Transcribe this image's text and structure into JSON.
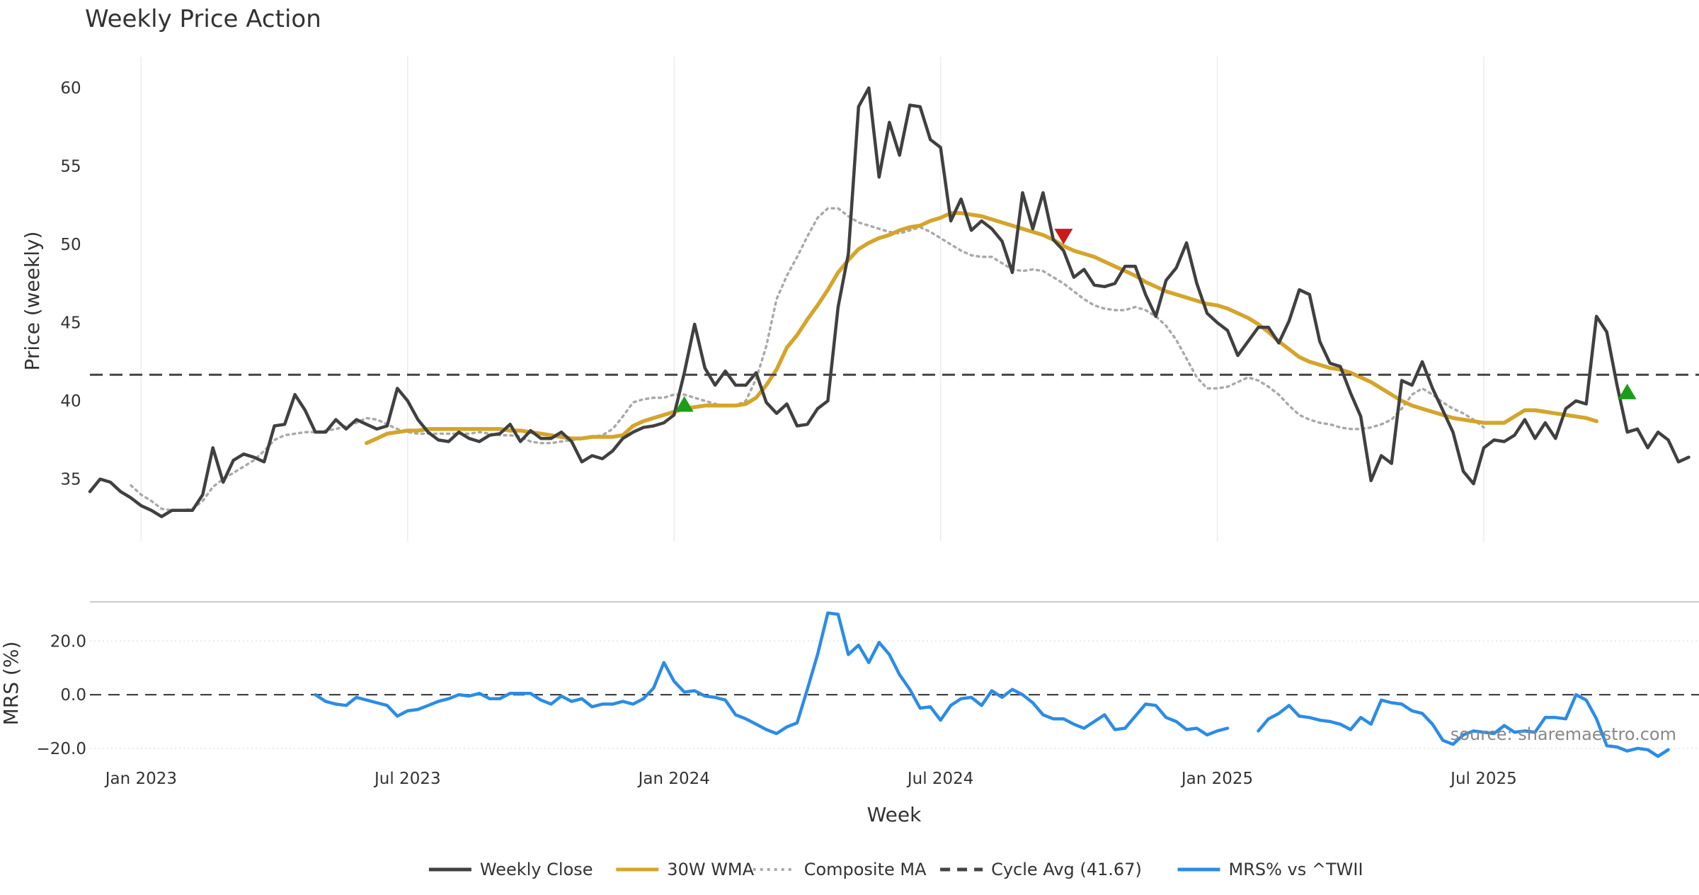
{
  "chart_data": [
    {
      "type": "line",
      "title": "Weekly Price Action",
      "xlabel": "",
      "ylabel": "Price (weekly)",
      "ylim": [
        31,
        62
      ],
      "xlim": [
        "2022-11-28",
        "2025-12-01"
      ],
      "y_ticks": [
        35,
        40,
        45,
        50,
        55,
        60
      ],
      "grid": "vertical",
      "series": [
        {
          "name": "Weekly Close",
          "color": "#404040",
          "style": "solid",
          "start": "2022-11-28",
          "values": [
            34.2,
            35.0,
            34.8,
            34.2,
            33.8,
            33.3,
            33.0,
            32.6,
            33.0,
            33.0,
            33.0,
            34.0,
            37.0,
            34.8,
            36.2,
            36.6,
            36.4,
            36.1,
            38.4,
            38.5,
            40.4,
            39.4,
            38.0,
            38.0,
            38.8,
            38.2,
            38.8,
            38.5,
            38.2,
            38.4,
            40.8,
            40.0,
            38.8,
            38.0,
            37.5,
            37.4,
            38.0,
            37.6,
            37.4,
            37.8,
            37.9,
            38.5,
            37.4,
            38.1,
            37.6,
            37.6,
            38.0,
            37.4,
            36.1,
            36.5,
            36.3,
            36.8,
            37.6,
            38.0,
            38.3,
            38.4,
            38.6,
            39.1,
            41.8,
            44.9,
            42.1,
            41.0,
            41.9,
            41.0,
            41.0,
            41.8,
            39.9,
            39.2,
            39.8,
            38.4,
            38.5,
            39.5,
            40.0,
            46.0,
            49.4,
            58.8,
            60.0,
            54.3,
            57.8,
            55.7,
            58.9,
            58.8,
            56.7,
            56.2,
            51.5,
            52.9,
            50.9,
            51.5,
            51.0,
            50.2,
            48.2,
            53.3,
            51.0,
            53.3,
            50.3,
            49.6,
            47.9,
            48.4,
            47.4,
            47.3,
            47.5,
            48.6,
            48.6,
            46.8,
            45.4,
            47.7,
            48.5,
            50.1,
            47.5,
            45.6,
            45.0,
            44.5,
            42.9,
            43.8,
            44.7,
            44.7,
            43.7,
            45.1,
            47.1,
            46.8,
            43.8,
            42.4,
            42.2,
            40.5,
            39.0,
            34.9,
            36.5,
            36.0,
            41.3,
            41.0,
            42.5,
            40.8,
            39.4,
            38.0,
            35.5,
            34.7,
            37.0,
            37.5,
            37.4,
            37.8,
            38.8,
            37.6,
            38.6,
            37.6,
            39.5,
            40.0,
            39.8,
            45.4,
            44.4,
            41.0,
            38.0,
            38.2,
            37.0,
            38.0,
            37.5,
            36.1,
            36.4
          ]
        },
        {
          "name": "30W WMA",
          "color": "#D4A52C",
          "style": "solid",
          "start": "2023-06-05",
          "values": [
            37.3,
            37.6,
            37.9,
            38.0,
            38.1,
            38.1,
            38.2,
            38.2,
            38.2,
            38.2,
            38.2,
            38.2,
            38.2,
            38.2,
            38.1,
            38.1,
            38.0,
            37.9,
            37.8,
            37.7,
            37.6,
            37.6,
            37.7,
            37.7,
            37.7,
            37.8,
            38.4,
            38.7,
            38.9,
            39.1,
            39.3,
            39.5,
            39.6,
            39.7,
            39.7,
            39.7,
            39.7,
            39.8,
            40.2,
            41.0,
            42.0,
            43.4,
            44.2,
            45.2,
            46.1,
            47.1,
            48.2,
            49.0,
            49.7,
            50.1,
            50.4,
            50.6,
            50.9,
            51.1,
            51.2,
            51.5,
            51.7,
            52.0,
            52.0,
            51.9,
            51.8,
            51.6,
            51.4,
            51.2,
            51.0,
            50.8,
            50.6,
            50.3,
            49.9,
            49.6,
            49.4,
            49.2,
            48.9,
            48.6,
            48.3,
            48.0,
            47.6,
            47.3,
            47.0,
            46.8,
            46.6,
            46.4,
            46.2,
            46.1,
            45.9,
            45.6,
            45.3,
            44.9,
            44.4,
            43.8,
            43.3,
            42.8,
            42.5,
            42.3,
            42.1,
            42.0,
            41.8,
            41.5,
            41.2,
            40.8,
            40.4,
            40.0,
            39.7,
            39.5,
            39.3,
            39.1,
            38.9,
            38.8,
            38.7,
            38.6,
            38.6,
            38.6,
            39.0,
            39.4,
            39.4,
            39.3,
            39.2,
            39.1,
            39.0,
            38.9,
            38.7
          ]
        },
        {
          "name": "Composite MA",
          "color": "#AAAAAA",
          "style": "dotted",
          "start": "2022-12-26",
          "values": [
            34.6,
            34.0,
            33.6,
            33.1,
            33.0,
            33.0,
            33.1,
            33.6,
            34.5,
            35.0,
            35.4,
            35.8,
            36.2,
            36.8,
            37.5,
            37.8,
            37.9,
            38.0,
            38.0,
            38.1,
            38.2,
            38.4,
            38.6,
            38.9,
            38.8,
            38.5,
            38.2,
            38.0,
            37.9,
            37.9,
            37.9,
            37.9,
            37.9,
            37.9,
            38.0,
            37.9,
            37.8,
            37.8,
            37.7,
            37.4,
            37.3,
            37.3,
            37.4,
            37.5,
            37.6,
            37.7,
            37.8,
            38.2,
            39.0,
            39.9,
            40.1,
            40.2,
            40.2,
            40.4,
            40.4,
            40.2,
            40.0,
            39.8,
            39.7,
            39.7,
            40.0,
            41.4,
            43.5,
            46.5,
            48.0,
            49.2,
            50.5,
            51.7,
            52.3,
            52.3,
            51.8,
            51.4,
            51.2,
            51.0,
            50.8,
            50.7,
            50.9,
            51.1,
            50.8,
            50.4,
            50.0,
            49.6,
            49.3,
            49.2,
            49.2,
            48.8,
            48.4,
            48.3,
            48.4,
            48.3,
            47.9,
            47.5,
            47.0,
            46.5,
            46.1,
            45.9,
            45.8,
            45.8,
            46.0,
            45.8,
            45.4,
            44.8,
            43.9,
            42.7,
            41.5,
            40.8,
            40.8,
            40.9,
            41.2,
            41.5,
            41.3,
            40.9,
            40.4,
            39.7,
            39.1,
            38.8,
            38.6,
            38.5,
            38.3,
            38.2,
            38.2,
            38.3,
            38.5,
            38.8,
            39.5,
            40.4,
            40.8,
            40.4,
            39.9,
            39.5,
            39.2,
            38.8,
            38.3
          ]
        },
        {
          "name": "Cycle Avg (41.67)",
          "color": "#444444",
          "style": "dashed",
          "constant": 41.67
        }
      ],
      "signals": [
        {
          "type": "buy",
          "date": "2024-01-08",
          "value": 39.8,
          "color": "#1A9E1A"
        },
        {
          "type": "sell",
          "date": "2024-09-23",
          "value": 50.5,
          "color": "#CC1A1A"
        },
        {
          "type": "buy",
          "date": "2025-10-13",
          "value": 40.6,
          "color": "#1A9E1A"
        }
      ]
    },
    {
      "type": "line",
      "title": "",
      "xlabel": "Week",
      "ylabel": "MRS (%)",
      "ylim": [
        -24,
        32
      ],
      "y_ticks": [
        -20,
        0,
        20
      ],
      "y_tick_labels": [
        "−20.0",
        "0.0",
        "20.0"
      ],
      "x_ticks": [
        "2023-01-02",
        "2023-07-03",
        "2024-01-01",
        "2024-07-01",
        "2025-01-06",
        "2025-07-07"
      ],
      "x_tick_labels": [
        "Jan 2023",
        "Jul 2023",
        "Jan 2024",
        "Jul 2024",
        "Jan 2025",
        "Jul 2025"
      ],
      "grid": "horizontal-dotted",
      "zero_line": "dashed",
      "series": [
        {
          "name": "MRS% vs ^TWII",
          "color": "#2B8CE6",
          "style": "solid",
          "segments": [
            {
              "start": "2023-05-01",
              "values": [
                0,
                -2.5,
                -3.5,
                -4,
                -1,
                -2,
                -3,
                -4,
                -8,
                -6,
                -5.5,
                -4,
                -2.5,
                -1.5,
                0,
                -0.5,
                0.5,
                -1.5,
                -1.5,
                0.5,
                0.5,
                0.5,
                -2,
                -3.5,
                -0.5,
                -2.5,
                -1.5,
                -4.5,
                -3.5,
                -3.5,
                -2.5,
                -3.5,
                -1.5,
                2.5,
                12,
                5,
                1,
                1.5,
                -0.5,
                -1,
                -2,
                -7.5,
                -9,
                -11,
                -13,
                -14.5,
                -12,
                -10.5,
                2,
                15,
                30.5,
                30,
                15,
                18.5,
                12,
                19.5,
                15,
                7.5,
                2,
                -5,
                -4.5,
                -9.5,
                -4,
                -1.5,
                -1,
                -4,
                1.5,
                -1,
                2,
                0,
                -3,
                -7.5,
                -9,
                -9,
                -11,
                -12.5,
                -10,
                -7.5,
                -13,
                -12.5,
                -8,
                -3.5,
                -4,
                -8.5,
                -10,
                -13,
                -12.5,
                -15,
                -13.5,
                -12.5
              ]
            },
            {
              "start": "2025-02-03",
              "values": [
                -13.5,
                -9,
                -7,
                -4,
                -8,
                -8.5,
                -9.5,
                -10,
                -11,
                -13,
                -8.5,
                -11,
                -2,
                -3,
                -3.5,
                -6,
                -7,
                -11,
                -17,
                -18.5,
                -15,
                -13.5,
                -14,
                -14.5,
                -11.5,
                -14,
                -13.5,
                -14,
                -8.5,
                -8.5,
                -9,
                0,
                -2,
                -9,
                -19,
                -19.5,
                -21,
                -20,
                -20.5,
                -23,
                -20.5
              ]
            }
          ]
        }
      ]
    }
  ],
  "legend": [
    {
      "label": "Weekly Close",
      "color": "#404040",
      "style": "solid"
    },
    {
      "label": "30W WMA",
      "color": "#D4A52C",
      "style": "solid"
    },
    {
      "label": "Composite MA",
      "color": "#AAAAAA",
      "style": "dotted"
    },
    {
      "label": "Cycle Avg (41.67)",
      "color": "#444444",
      "style": "dashed"
    },
    {
      "label": "MRS% vs ^TWII",
      "color": "#2B8CE6",
      "style": "solid"
    }
  ],
  "legend_position": "bottom-center",
  "source_text": "source: sharemaestro.com"
}
